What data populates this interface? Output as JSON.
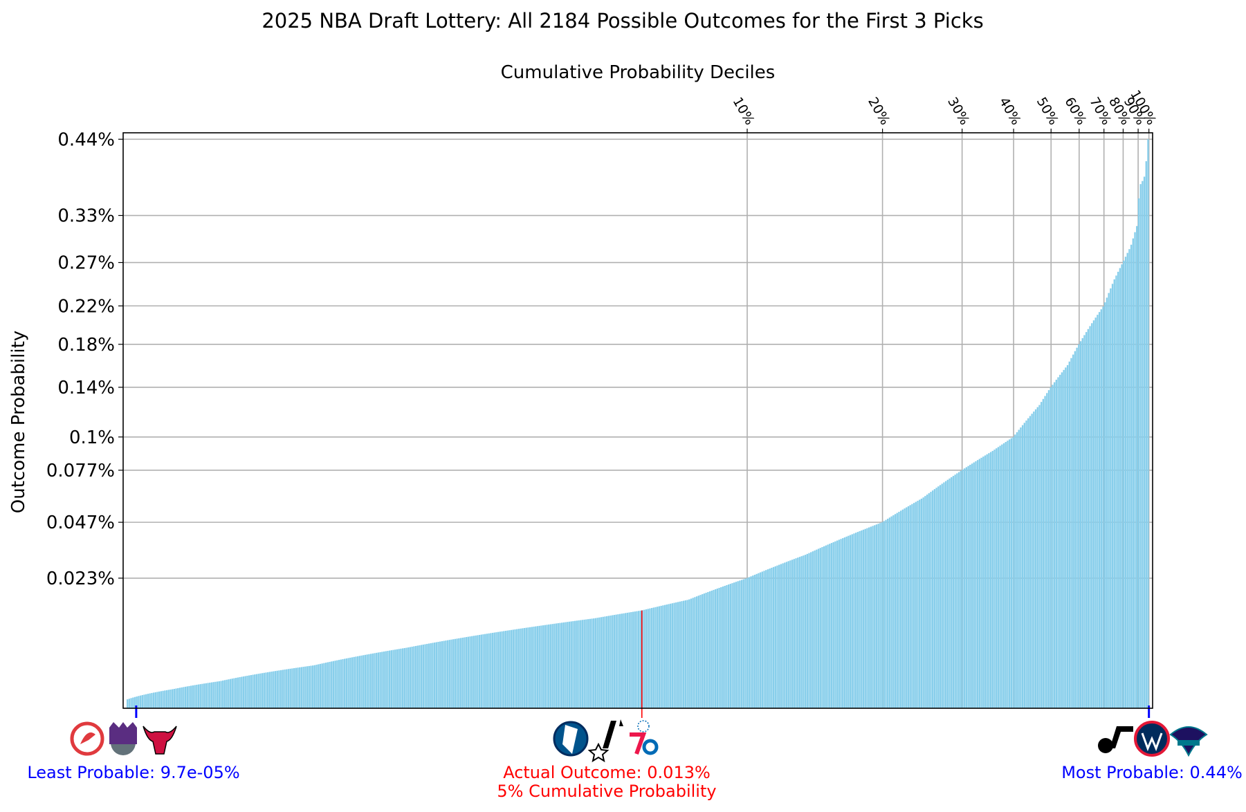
{
  "chart_data": {
    "type": "bar",
    "title": "2025 NBA Draft Lottery: All 2184 Possible Outcomes for the First 3 Picks",
    "top_axis_label": "Cumulative Probability Deciles",
    "ylabel": "Outcome Probability",
    "xlabel": "",
    "n_outcomes": 2184,
    "y_axis_scale": "sqrt",
    "ylim": [
      0,
      0.45
    ],
    "y_ticks": [
      {
        "value": 0.023,
        "label": "0.023%"
      },
      {
        "value": 0.047,
        "label": "0.047%"
      },
      {
        "value": 0.077,
        "label": "0.077%"
      },
      {
        "value": 0.1,
        "label": "0.1%"
      },
      {
        "value": 0.14,
        "label": "0.14%"
      },
      {
        "value": 0.18,
        "label": "0.18%"
      },
      {
        "value": 0.22,
        "label": "0.22%"
      },
      {
        "value": 0.27,
        "label": "0.27%"
      },
      {
        "value": 0.33,
        "label": "0.33%"
      },
      {
        "value": 0.44,
        "label": "0.44%"
      }
    ],
    "deciles": [
      {
        "label": "10%",
        "rank": 1325
      },
      {
        "label": "20%",
        "rank": 1614
      },
      {
        "label": "30%",
        "rank": 1784
      },
      {
        "label": "40%",
        "rank": 1894
      },
      {
        "label": "50%",
        "rank": 1974
      },
      {
        "label": "60%",
        "rank": 2034
      },
      {
        "label": "70%",
        "rank": 2087
      },
      {
        "label": "80%",
        "rank": 2128
      },
      {
        "label": "90%",
        "rank": 2160
      },
      {
        "label": "100%",
        "rank": 2184
      }
    ],
    "sorted_probability_curve": [
      {
        "rank": 0,
        "value": 0.0001
      },
      {
        "rank": 100,
        "value": 0.0005
      },
      {
        "rank": 200,
        "value": 0.001
      },
      {
        "rank": 400,
        "value": 0.0025
      },
      {
        "rank": 600,
        "value": 0.005
      },
      {
        "rank": 800,
        "value": 0.008
      },
      {
        "rank": 1000,
        "value": 0.011
      },
      {
        "rank": 1100,
        "value": 0.013
      },
      {
        "rank": 1200,
        "value": 0.016
      },
      {
        "rank": 1325,
        "value": 0.023
      },
      {
        "rank": 1450,
        "value": 0.032
      },
      {
        "rank": 1614,
        "value": 0.047
      },
      {
        "rank": 1700,
        "value": 0.06
      },
      {
        "rank": 1784,
        "value": 0.077
      },
      {
        "rank": 1850,
        "value": 0.09
      },
      {
        "rank": 1894,
        "value": 0.1
      },
      {
        "rank": 1950,
        "value": 0.125
      },
      {
        "rank": 1974,
        "value": 0.14
      },
      {
        "rank": 2010,
        "value": 0.16
      },
      {
        "rank": 2034,
        "value": 0.18
      },
      {
        "rank": 2060,
        "value": 0.2
      },
      {
        "rank": 2087,
        "value": 0.22
      },
      {
        "rank": 2110,
        "value": 0.25
      },
      {
        "rank": 2128,
        "value": 0.27
      },
      {
        "rank": 2145,
        "value": 0.29
      },
      {
        "rank": 2160,
        "value": 0.32
      },
      {
        "rank": 2163,
        "value": 0.37
      },
      {
        "rank": 2172,
        "value": 0.38
      },
      {
        "rank": 2177,
        "value": 0.39
      },
      {
        "rank": 2180,
        "value": 0.44
      },
      {
        "rank": 2184,
        "value": 0.44
      }
    ],
    "markers": {
      "least_probable": {
        "label": "Least Probable: 9.7e-05%",
        "rank": 20,
        "value": 9.7e-05,
        "color": "#0000ff",
        "teams": [
          "Hawks",
          "Kings",
          "Bulls"
        ]
      },
      "actual_outcome": {
        "label": "Actual Outcome: 0.013%",
        "sublabel": "5% Cumulative Probability",
        "rank": 1100,
        "value": 0.013,
        "color": "#ff0000",
        "teams": [
          "Mavericks",
          "Spurs",
          "76ers"
        ]
      },
      "most_probable": {
        "label": "Most Probable: 0.44%",
        "rank": 2183,
        "value": 0.44,
        "color": "#0000ff",
        "teams": [
          "Jazz",
          "Wizards",
          "Hornets"
        ]
      }
    },
    "grid": true,
    "bar_color": "#87ceeb"
  }
}
